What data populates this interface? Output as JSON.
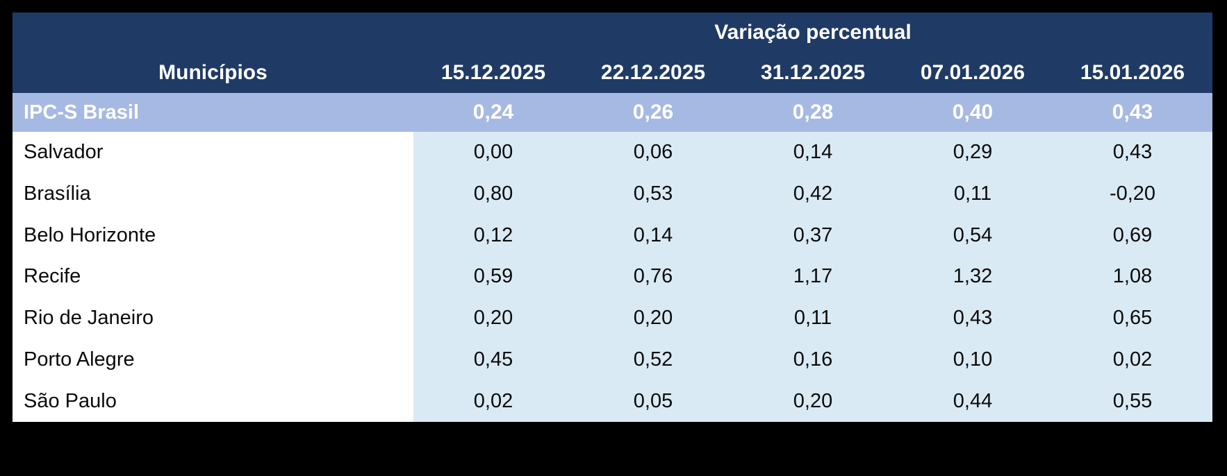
{
  "title": "Variação percentual",
  "colors": {
    "page-bg": "#000000",
    "header-bg": "#1f3a64",
    "header-text": "#ffffff",
    "summary-bg": "#a6b9e2",
    "summary-text": "#ffffff",
    "cell-bg": "#daeaf5",
    "label-bg": "#ffffff",
    "body-text": "#0a0a0a"
  },
  "header": {
    "group_label": "Variação percentual",
    "municipalities_label": "Municípios",
    "dates": [
      "15.12.2025",
      "22.12.2025",
      "31.12.2025",
      "07.01.2026",
      "15.01.2026"
    ]
  },
  "summary": {
    "label": "IPC-S Brasil",
    "values": [
      "0,24",
      "0,26",
      "0,28",
      "0,40",
      "0,43"
    ]
  },
  "rows": [
    {
      "label": "Salvador",
      "values": [
        "0,00",
        "0,06",
        "0,14",
        "0,29",
        "0,43"
      ]
    },
    {
      "label": "Brasília",
      "values": [
        "0,80",
        "0,53",
        "0,42",
        "0,11",
        "-0,20"
      ]
    },
    {
      "label": "Belo Horizonte",
      "values": [
        "0,12",
        "0,14",
        "0,37",
        "0,54",
        "0,69"
      ]
    },
    {
      "label": "Recife",
      "values": [
        "0,59",
        "0,76",
        "1,17",
        "1,32",
        "1,08"
      ]
    },
    {
      "label": "Rio de Janeiro",
      "values": [
        "0,20",
        "0,20",
        "0,11",
        "0,43",
        "0,65"
      ]
    },
    {
      "label": "Porto Alegre",
      "values": [
        "0,45",
        "0,52",
        "0,16",
        "0,10",
        "0,02"
      ]
    },
    {
      "label": "São Paulo",
      "values": [
        "0,02",
        "0,05",
        "0,20",
        "0,44",
        "0,55"
      ]
    }
  ],
  "chart_data": {
    "type": "table",
    "title": "Variação percentual",
    "categories": [
      "15.12.2025",
      "22.12.2025",
      "31.12.2025",
      "07.01.2026",
      "15.01.2026"
    ],
    "series": [
      {
        "name": "IPC-S Brasil",
        "values": [
          0.24,
          0.26,
          0.28,
          0.4,
          0.43
        ]
      },
      {
        "name": "Salvador",
        "values": [
          0.0,
          0.06,
          0.14,
          0.29,
          0.43
        ]
      },
      {
        "name": "Brasília",
        "values": [
          0.8,
          0.53,
          0.42,
          0.11,
          -0.2
        ]
      },
      {
        "name": "Belo Horizonte",
        "values": [
          0.12,
          0.14,
          0.37,
          0.54,
          0.69
        ]
      },
      {
        "name": "Recife",
        "values": [
          0.59,
          0.76,
          1.17,
          1.32,
          1.08
        ]
      },
      {
        "name": "Rio de Janeiro",
        "values": [
          0.2,
          0.2,
          0.11,
          0.43,
          0.65
        ]
      },
      {
        "name": "Porto Alegre",
        "values": [
          0.45,
          0.52,
          0.16,
          0.1,
          0.02
        ]
      },
      {
        "name": "São Paulo",
        "values": [
          0.02,
          0.05,
          0.2,
          0.44,
          0.55
        ]
      }
    ]
  }
}
